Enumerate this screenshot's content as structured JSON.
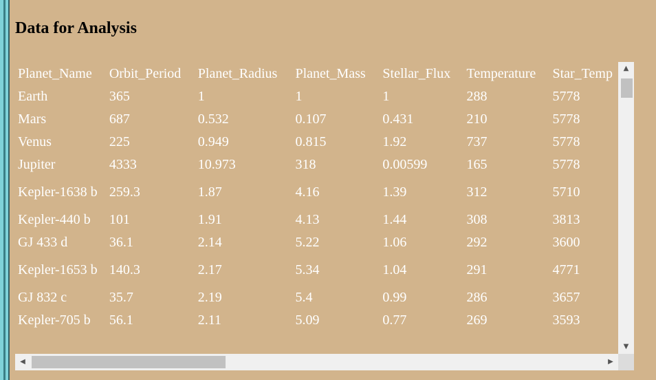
{
  "heading": "Data for Analysis",
  "table": {
    "columns": [
      "Planet_Name",
      "Orbit_Period",
      "Planet_Radius",
      "Planet_Mass",
      "Stellar_Flux",
      "Temperature",
      "Star_Temp"
    ],
    "rows": [
      [
        "Earth",
        "365",
        "1",
        "1",
        "1",
        "288",
        "5778"
      ],
      [
        "Mars",
        "687",
        "0.532",
        "0.107",
        "0.431",
        "210",
        "5778"
      ],
      [
        "Venus",
        "225",
        "0.949",
        "0.815",
        "1.92",
        "737",
        "5778"
      ],
      [
        "Jupiter",
        "4333",
        "10.973",
        "318",
        "0.00599",
        "165",
        "5778"
      ],
      [
        "Kepler-1638 b",
        "259.3",
        "1.87",
        "4.16",
        "1.39",
        "312",
        "5710"
      ],
      [
        "Kepler-440 b",
        "101",
        "1.91",
        "4.13",
        "1.44",
        "308",
        "3813"
      ],
      [
        "GJ 433 d",
        "36.1",
        "2.14",
        "5.22",
        "1.06",
        "292",
        "3600"
      ],
      [
        "Kepler-1653 b",
        "140.3",
        "2.17",
        "5.34",
        "1.04",
        "291",
        "4771"
      ],
      [
        "GJ 832 c",
        "35.7",
        "2.19",
        "5.4",
        "0.99",
        "286",
        "3657"
      ],
      [
        "Kepler-705 b",
        "56.1",
        "2.11",
        "5.09",
        "0.77",
        "269",
        "3593"
      ]
    ]
  },
  "scrollbars": {
    "up_arrow": "▲",
    "down_arrow": "▼",
    "left_arrow": "◀",
    "right_arrow": "▶"
  }
}
